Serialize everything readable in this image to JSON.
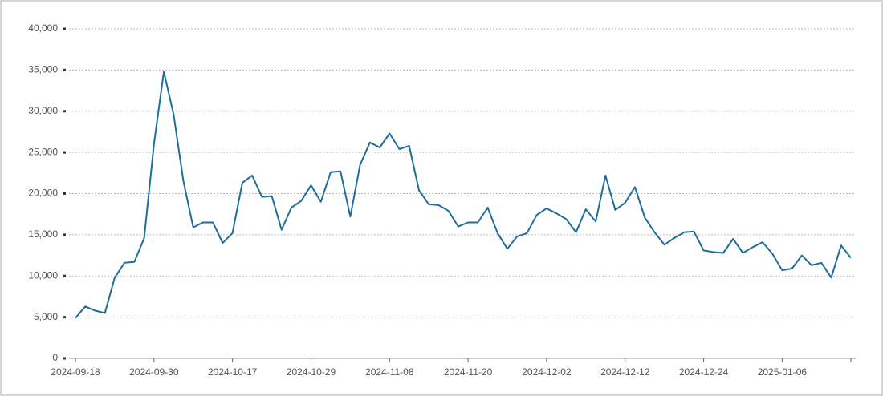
{
  "chart_data": {
    "type": "line",
    "categories": [
      "2024-09-18",
      null,
      null,
      null,
      null,
      null,
      null,
      null,
      "2024-09-30",
      null,
      null,
      null,
      null,
      null,
      null,
      null,
      "2024-10-17",
      null,
      null,
      null,
      null,
      null,
      null,
      null,
      "2024-10-29",
      null,
      null,
      null,
      null,
      null,
      null,
      null,
      "2024-11-08",
      null,
      null,
      null,
      null,
      null,
      null,
      null,
      "2024-11-20",
      null,
      null,
      null,
      null,
      null,
      null,
      null,
      "2024-12-02",
      null,
      null,
      null,
      null,
      null,
      null,
      null,
      "2024-12-12",
      null,
      null,
      null,
      null,
      null,
      null,
      null,
      "2024-12-24",
      null,
      null,
      null,
      null,
      null,
      null,
      null,
      "2025-01-06",
      null,
      null,
      null,
      null,
      null,
      null,
      null
    ],
    "series": [
      {
        "color": "#1f6e99",
        "values": [
          4900,
          6300,
          5800,
          5500,
          9800,
          11600,
          11700,
          14600,
          26000,
          34800,
          29600,
          21500,
          15900,
          16500,
          16500,
          14000,
          15200,
          21300,
          22200,
          19600,
          19700,
          15600,
          18300,
          19100,
          21000,
          19000,
          22600,
          22700,
          17200,
          23500,
          26200,
          25600,
          27300,
          25400,
          25800,
          20400,
          18700,
          18600,
          17900,
          16000,
          16500,
          16500,
          18300,
          15200,
          13300,
          14800,
          15200,
          17400,
          18200,
          17600,
          16900,
          15300,
          18100,
          16600,
          22200,
          18000,
          18900,
          20800,
          17100,
          15300,
          13800,
          14600,
          15300,
          15400,
          13100,
          12900,
          12800,
          14500,
          12800,
          13500,
          14100,
          12700,
          10700,
          10900,
          12500,
          11300,
          11600,
          9800,
          13700,
          12200
        ]
      }
    ],
    "ylim": [
      0,
      40000
    ],
    "yticks": [
      0,
      {
        "value": 5000,
        "label": "5,000"
      },
      {
        "value": 10000,
        "label": "10,000"
      },
      {
        "value": 15000,
        "label": "15,000"
      },
      {
        "value": 20000,
        "label": "20,000"
      },
      {
        "value": 25000,
        "label": "25,000"
      },
      {
        "value": 30000,
        "label": "30,000"
      },
      {
        "value": 35000,
        "label": "35,000"
      },
      {
        "value": 40000,
        "label": "40,000"
      }
    ],
    "grid": true
  }
}
